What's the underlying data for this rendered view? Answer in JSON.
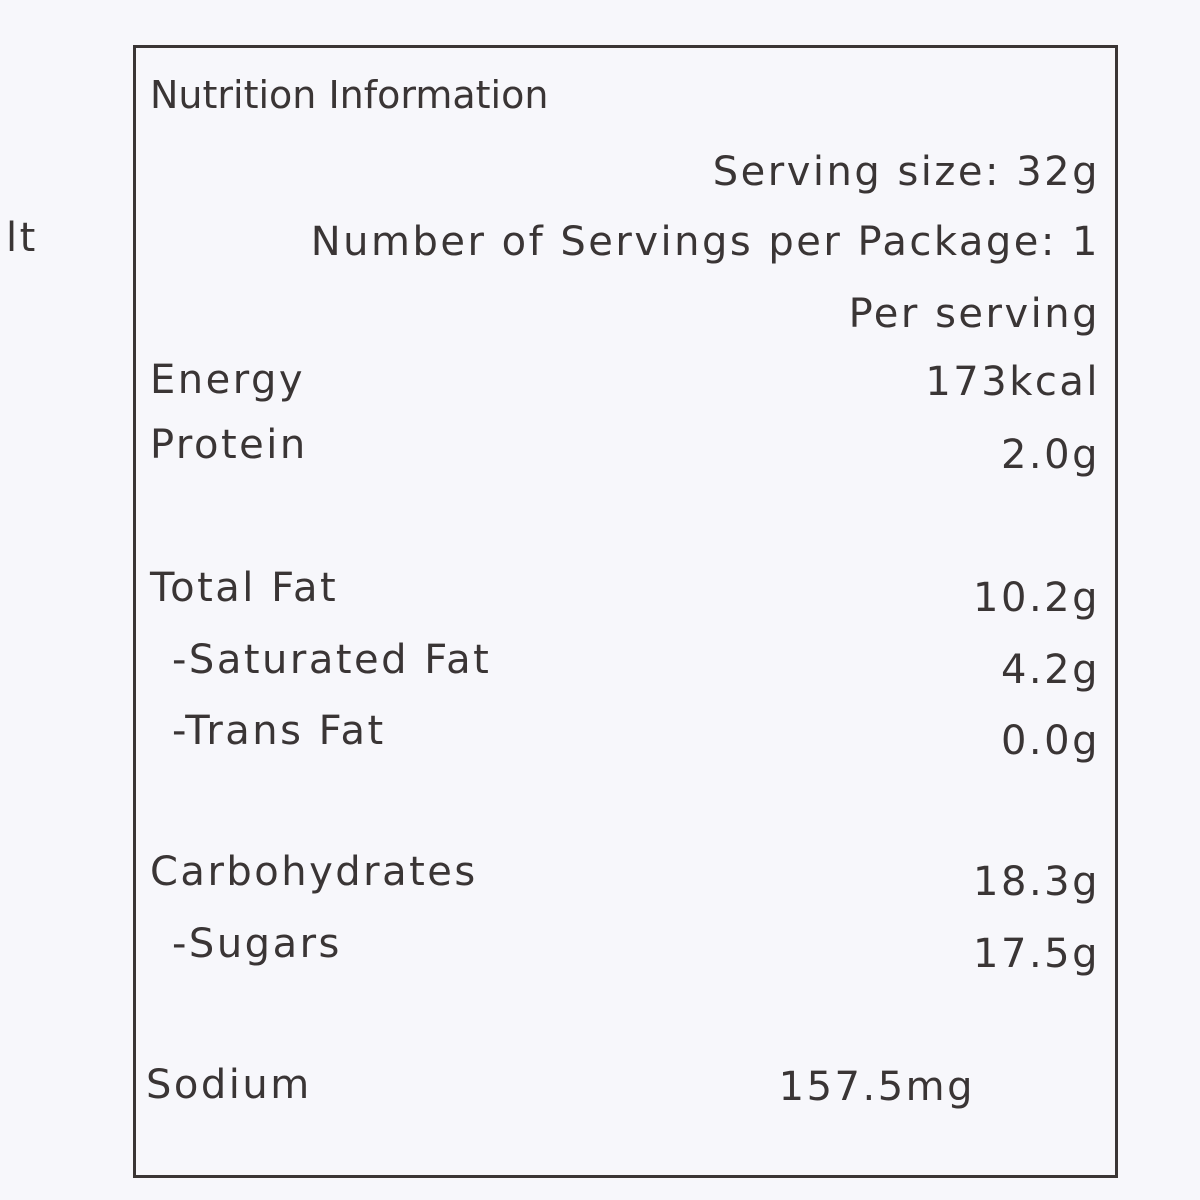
{
  "fragment": "lt",
  "label": {
    "title": "Nutrition Information",
    "serving_size": "Serving size: 32g",
    "servings_per_package": "Number of Servings per Package: 1",
    "column_header": "Per serving",
    "rows": [
      {
        "name": "Energy",
        "value": "173kcal"
      },
      {
        "name": "Protein",
        "value": "2.0g"
      },
      {
        "name": "Total Fat",
        "value": "10.2g"
      },
      {
        "name": "-Saturated Fat",
        "value": "4.2g"
      },
      {
        "name": "-Trans Fat",
        "value": "0.0g"
      },
      {
        "name": "Carbohydrates",
        "value": "18.3g"
      },
      {
        "name": "-Sugars",
        "value": "17.5g"
      },
      {
        "name": "Sodium",
        "value": "157.5mg"
      }
    ]
  }
}
